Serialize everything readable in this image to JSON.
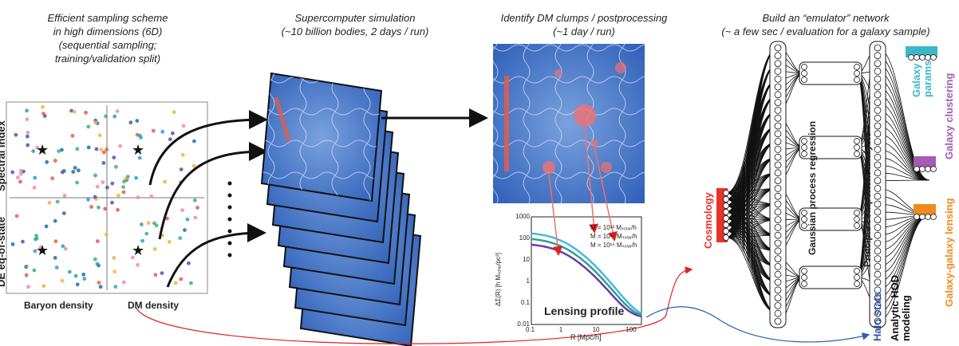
{
  "captions": {
    "sampling": [
      "Efficient sampling scheme",
      "in high dimensions (6D)",
      "(sequential sampling;",
      "training/validation split)"
    ],
    "simulation": [
      "Supercomputer simulation",
      "(~10 billion bodies, 2 days / run)"
    ],
    "postprocess": [
      "Identify DM clumps / postprocessing",
      "(~1 day / run)"
    ],
    "emulator": [
      "Build an “emulator” network",
      "(~ a few sec / evaluation for a galaxy sample)"
    ]
  },
  "sampling_panel": {
    "xlabels": [
      "Baryon density",
      "DM density"
    ],
    "ylabels": [
      "DE eq-of-state",
      "Spectral index"
    ]
  },
  "lensing_plot": {
    "title": "Lensing profile",
    "xlabel": "R [Mpc/h]",
    "ylabel": "ΔΣ(R) [h Mₛₒₗₐᵣ/pc²]",
    "xticks": [
      "0.1",
      "1",
      "10",
      "100"
    ],
    "yticks": [
      "1000",
      "100",
      "10",
      "1",
      "0.1",
      "0.01"
    ],
    "legend": [
      "M = 10¹³ Mₛₒₗₐᵣ/h",
      "M = 10¹⁴ Mₛₒₗₐᵣ/h",
      "M = 10¹⁵ Mₛₒₗₐᵣ/h"
    ],
    "colors": [
      "#6a3aa8",
      "#2f9f8f",
      "#45b8e6"
    ]
  },
  "network": {
    "layers": [
      "Gaussian process regression",
      "Principal component analysis"
    ],
    "inputs": [
      {
        "label": "Cosmology",
        "color": "#e8322b"
      },
      {
        "label": "Halo stats",
        "color": "#2e56a6"
      },
      {
        "label": "Analytic HOD modeling",
        "color": "#111111"
      }
    ],
    "outputs": [
      {
        "label": "Galaxy params",
        "color": "#3bb7c9"
      },
      {
        "label": "Galaxy clustering",
        "color": "#a35bb5"
      },
      {
        "label": "Galaxy-galaxy lensing",
        "color": "#f08a1e"
      }
    ]
  },
  "arrow_colors": {
    "red": "#e02020",
    "blue": "#2a5fb0",
    "pink": "#f07070"
  }
}
